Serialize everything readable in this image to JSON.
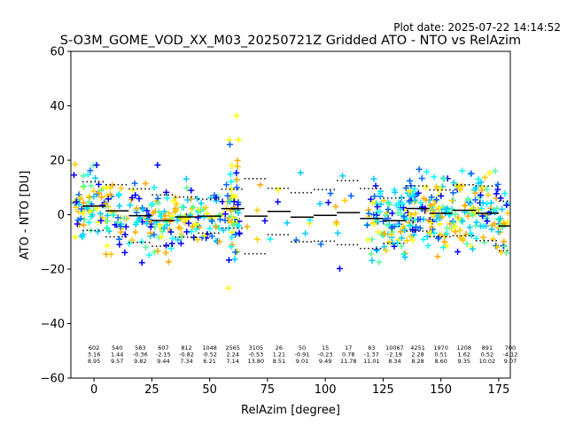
{
  "chart_data": {
    "type": "scatter",
    "title": "S-O3M_GOME_VOD_XX_M03_20250721Z Gridded ATO - NTO vs RelAzim",
    "subtitle": "Plot date: 2025-07-22 14:14:52",
    "xlabel": "RelAzim [degree]",
    "ylabel": "ATO - NTO [DU]",
    "xlim": [
      -10,
      180
    ],
    "ylim": [
      -60,
      60
    ],
    "xticks": [
      0,
      25,
      50,
      75,
      100,
      125,
      150,
      175
    ],
    "yticks": [
      -60,
      -40,
      -20,
      0,
      20,
      40,
      60
    ],
    "marker": "+",
    "grid": false,
    "point_colors": [
      "#0000ff",
      "#0066ff",
      "#00ccff",
      "#00ffff",
      "#55ff99",
      "#ffff00",
      "#ffcc00",
      "#ffaa00"
    ],
    "bins": [
      {
        "x": 0,
        "count": "602",
        "mean": "3.16",
        "std": "8.95",
        "mean_value": 3.16,
        "std_value": 8.95
      },
      {
        "x": 10,
        "count": "540",
        "mean": "1.44",
        "std": "9.57",
        "mean_value": 1.44,
        "std_value": 9.57
      },
      {
        "x": 20,
        "count": "583",
        "mean": "-0.36",
        "std": "9.82",
        "mean_value": -0.36,
        "std_value": 9.82
      },
      {
        "x": 30,
        "count": "607",
        "mean": "-2.15",
        "std": "9.44",
        "mean_value": -2.15,
        "std_value": 9.44
      },
      {
        "x": 40,
        "count": "812",
        "mean": "-0.82",
        "std": "7.34",
        "mean_value": -0.82,
        "std_value": 7.34
      },
      {
        "x": 50,
        "count": "1048",
        "mean": "-0.52",
        "std": "6.21",
        "mean_value": -0.52,
        "std_value": 6.21
      },
      {
        "x": 60,
        "count": "2565",
        "mean": "2.24",
        "std": "7.14",
        "mean_value": 2.24,
        "std_value": 7.14
      },
      {
        "x": 70,
        "count": "3105",
        "mean": "-0.53",
        "std": "13.80",
        "mean_value": -0.53,
        "std_value": 13.8
      },
      {
        "x": 80,
        "count": "26",
        "mean": "1.21",
        "std": "8.51",
        "mean_value": 1.21,
        "std_value": 8.51
      },
      {
        "x": 90,
        "count": "50",
        "mean": "-0.91",
        "std": "9.01",
        "mean_value": -0.91,
        "std_value": 9.01
      },
      {
        "x": 100,
        "count": "15",
        "mean": "-0.23",
        "std": "9.49",
        "mean_value": -0.23,
        "std_value": 9.49
      },
      {
        "x": 110,
        "count": "17",
        "mean": "0.78",
        "std": "11.78",
        "mean_value": 0.78,
        "std_value": 11.78
      },
      {
        "x": 120,
        "count": "83",
        "mean": "-1.37",
        "std": "11.01",
        "mean_value": -1.37,
        "std_value": 11.01
      },
      {
        "x": 130,
        "count": "10067",
        "mean": "-2.19",
        "std": "8.34",
        "mean_value": -2.19,
        "std_value": 8.34
      },
      {
        "x": 140,
        "count": "4251",
        "mean": "2.28",
        "std": "8.28",
        "mean_value": 2.28,
        "std_value": 8.28
      },
      {
        "x": 150,
        "count": "1970",
        "mean": "0.51",
        "std": "8.60",
        "mean_value": 0.51,
        "std_value": 8.6
      },
      {
        "x": 160,
        "count": "1208",
        "mean": "1.62",
        "std": "9.35",
        "mean_value": 1.62,
        "std_value": 9.35
      },
      {
        "x": 170,
        "count": "891",
        "mean": "0.52",
        "std": "10.02",
        "mean_value": 0.52,
        "std_value": 10.02
      },
      {
        "x": 180,
        "count": "700",
        "mean": "-4.12",
        "std": "9.07",
        "mean_value": -4.12,
        "std_value": 9.07
      }
    ]
  }
}
